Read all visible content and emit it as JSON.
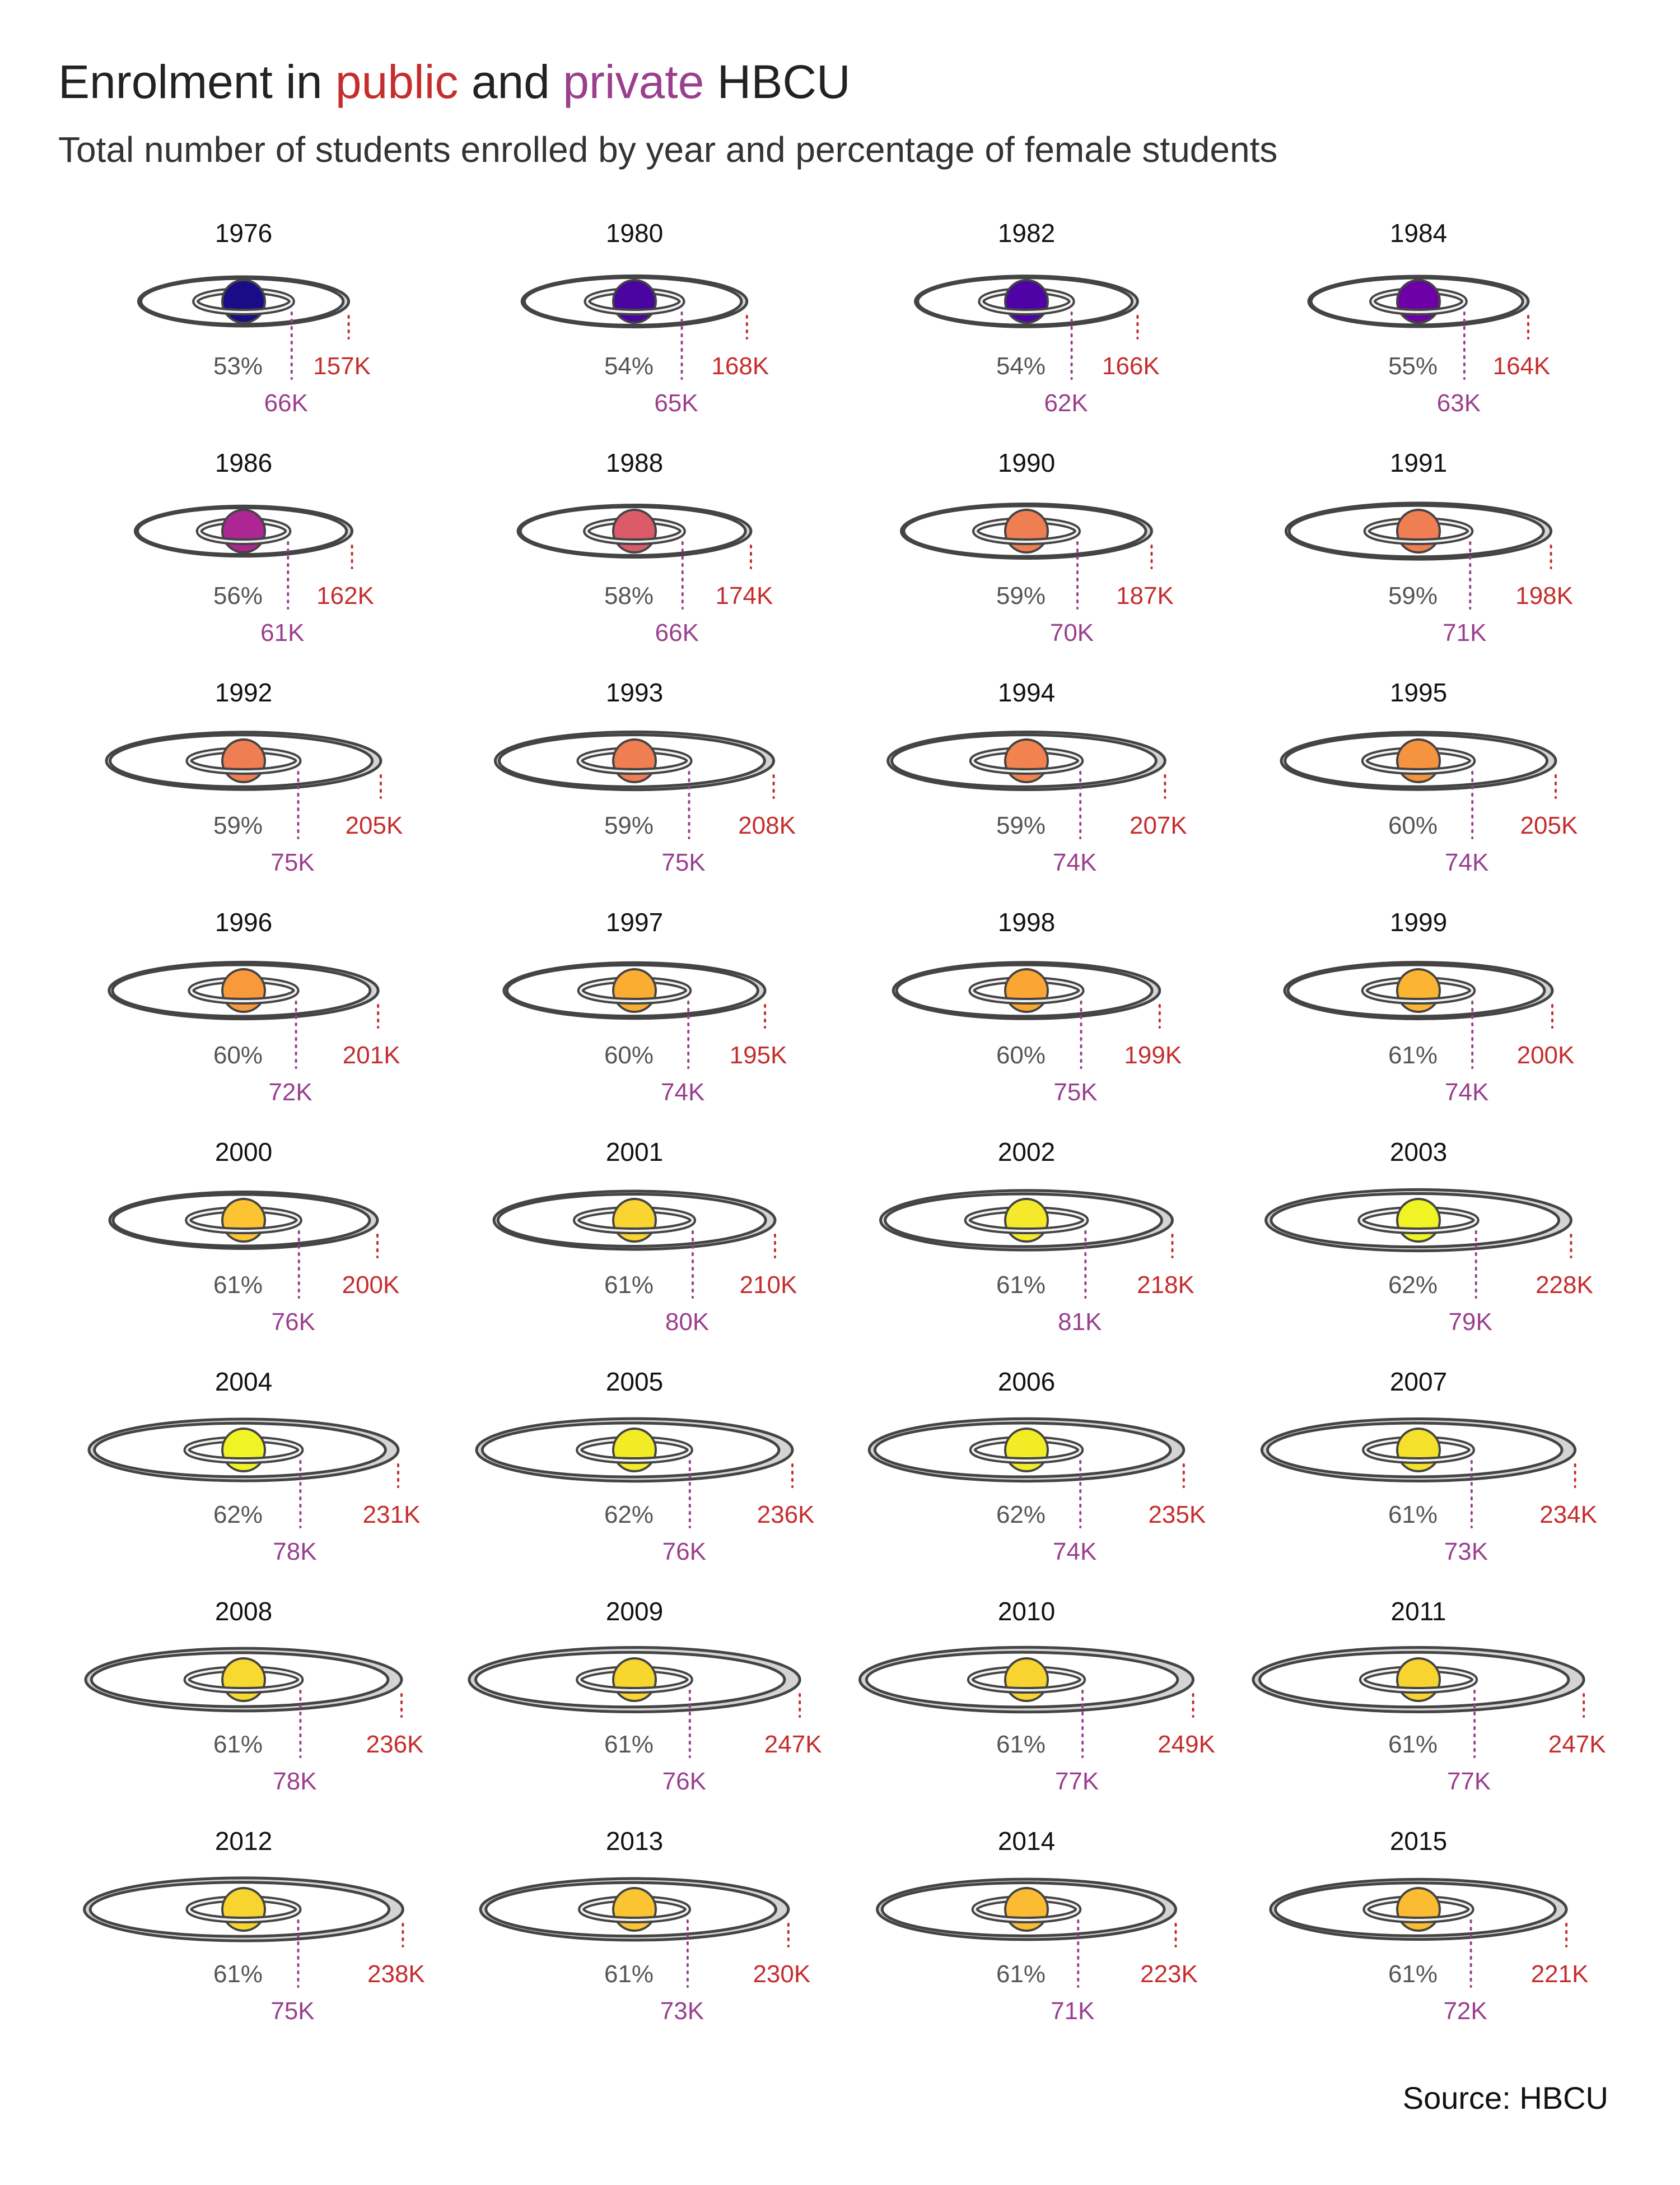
{
  "header": {
    "title_pre": "Enrolment in ",
    "title_public": "public",
    "title_mid": " and ",
    "title_private": "private",
    "title_post": " HBCU",
    "subtitle": "Total number of students enrolled by year and percentage of female students"
  },
  "source": "Source: HBCU",
  "colors": {
    "public": "#c62d2d",
    "private": "#9a3f8e",
    "percent_text": "#555555",
    "ring_stroke": "#444444",
    "outer_ring_fill": "#d4d4d4"
  },
  "chart_data": {
    "type": "small-multiples",
    "planet_color_scale": "plasma (percentage of female students)",
    "ring_size_encodes": "public enrolment (outer ring) and private enrolment (inner ring)",
    "series_labels": {
      "public": "public",
      "private": "private"
    },
    "years": [
      {
        "year": "1976",
        "female_pct": "53%",
        "public": "157K",
        "private": "66K",
        "public_value": 157,
        "private_value": 66,
        "planet_color": "#1a0c86"
      },
      {
        "year": "1980",
        "female_pct": "54%",
        "public": "168K",
        "private": "65K",
        "public_value": 168,
        "private_value": 65,
        "planet_color": "#4a04a0"
      },
      {
        "year": "1982",
        "female_pct": "54%",
        "public": "166K",
        "private": "62K",
        "public_value": 166,
        "private_value": 62,
        "planet_color": "#4f03a6"
      },
      {
        "year": "1984",
        "female_pct": "55%",
        "public": "164K",
        "private": "63K",
        "public_value": 164,
        "private_value": 63,
        "planet_color": "#6e00a8"
      },
      {
        "year": "1986",
        "female_pct": "56%",
        "public": "162K",
        "private": "61K",
        "public_value": 162,
        "private_value": 61,
        "planet_color": "#ac2694"
      },
      {
        "year": "1988",
        "female_pct": "58%",
        "public": "174K",
        "private": "66K",
        "public_value": 174,
        "private_value": 66,
        "planet_color": "#dc5b69"
      },
      {
        "year": "1990",
        "female_pct": "59%",
        "public": "187K",
        "private": "70K",
        "public_value": 187,
        "private_value": 70,
        "planet_color": "#ef7e52"
      },
      {
        "year": "1991",
        "female_pct": "59%",
        "public": "198K",
        "private": "71K",
        "public_value": 198,
        "private_value": 71,
        "planet_color": "#ef7e52"
      },
      {
        "year": "1992",
        "female_pct": "59%",
        "public": "205K",
        "private": "75K",
        "public_value": 205,
        "private_value": 75,
        "planet_color": "#ef7e52"
      },
      {
        "year": "1993",
        "female_pct": "59%",
        "public": "208K",
        "private": "75K",
        "public_value": 208,
        "private_value": 75,
        "planet_color": "#ef7e52"
      },
      {
        "year": "1994",
        "female_pct": "59%",
        "public": "207K",
        "private": "74K",
        "public_value": 207,
        "private_value": 74,
        "planet_color": "#f2834e"
      },
      {
        "year": "1995",
        "female_pct": "60%",
        "public": "205K",
        "private": "74K",
        "public_value": 205,
        "private_value": 74,
        "planet_color": "#f6933f"
      },
      {
        "year": "1996",
        "female_pct": "60%",
        "public": "201K",
        "private": "72K",
        "public_value": 201,
        "private_value": 72,
        "planet_color": "#f99a3a"
      },
      {
        "year": "1997",
        "female_pct": "60%",
        "public": "195K",
        "private": "74K",
        "public_value": 195,
        "private_value": 74,
        "planet_color": "#fbac33"
      },
      {
        "year": "1998",
        "female_pct": "60%",
        "public": "199K",
        "private": "75K",
        "public_value": 199,
        "private_value": 75,
        "planet_color": "#fba634"
      },
      {
        "year": "1999",
        "female_pct": "61%",
        "public": "200K",
        "private": "74K",
        "public_value": 200,
        "private_value": 74,
        "planet_color": "#fcb532"
      },
      {
        "year": "2000",
        "female_pct": "61%",
        "public": "200K",
        "private": "76K",
        "public_value": 200,
        "private_value": 76,
        "planet_color": "#fcc433"
      },
      {
        "year": "2001",
        "female_pct": "61%",
        "public": "210K",
        "private": "80K",
        "public_value": 210,
        "private_value": 80,
        "planet_color": "#fad531"
      },
      {
        "year": "2002",
        "female_pct": "61%",
        "public": "218K",
        "private": "81K",
        "public_value": 218,
        "private_value": 81,
        "planet_color": "#f4ea2b"
      },
      {
        "year": "2003",
        "female_pct": "62%",
        "public": "228K",
        "private": "79K",
        "public_value": 228,
        "private_value": 79,
        "planet_color": "#f0f424"
      },
      {
        "year": "2004",
        "female_pct": "62%",
        "public": "231K",
        "private": "78K",
        "public_value": 231,
        "private_value": 78,
        "planet_color": "#f0f424"
      },
      {
        "year": "2005",
        "female_pct": "62%",
        "public": "236K",
        "private": "76K",
        "public_value": 236,
        "private_value": 76,
        "planet_color": "#f2ec27"
      },
      {
        "year": "2006",
        "female_pct": "62%",
        "public": "235K",
        "private": "74K",
        "public_value": 235,
        "private_value": 74,
        "planet_color": "#f2ec27"
      },
      {
        "year": "2007",
        "female_pct": "61%",
        "public": "234K",
        "private": "73K",
        "public_value": 234,
        "private_value": 73,
        "planet_color": "#f5e12b"
      },
      {
        "year": "2008",
        "female_pct": "61%",
        "public": "236K",
        "private": "78K",
        "public_value": 236,
        "private_value": 78,
        "planet_color": "#f7d92f"
      },
      {
        "year": "2009",
        "female_pct": "61%",
        "public": "247K",
        "private": "76K",
        "public_value": 247,
        "private_value": 76,
        "planet_color": "#f8d630"
      },
      {
        "year": "2010",
        "female_pct": "61%",
        "public": "249K",
        "private": "77K",
        "public_value": 249,
        "private_value": 77,
        "planet_color": "#f8d430"
      },
      {
        "year": "2011",
        "female_pct": "61%",
        "public": "247K",
        "private": "77K",
        "public_value": 247,
        "private_value": 77,
        "planet_color": "#f8d430"
      },
      {
        "year": "2012",
        "female_pct": "61%",
        "public": "238K",
        "private": "75K",
        "public_value": 238,
        "private_value": 75,
        "planet_color": "#f8d430"
      },
      {
        "year": "2013",
        "female_pct": "61%",
        "public": "230K",
        "private": "73K",
        "public_value": 230,
        "private_value": 73,
        "planet_color": "#fac432"
      },
      {
        "year": "2014",
        "female_pct": "61%",
        "public": "223K",
        "private": "71K",
        "public_value": 223,
        "private_value": 71,
        "planet_color": "#fbbb33"
      },
      {
        "year": "2015",
        "female_pct": "61%",
        "public": "221K",
        "private": "72K",
        "public_value": 221,
        "private_value": 72,
        "planet_color": "#fbbb33"
      }
    ]
  }
}
